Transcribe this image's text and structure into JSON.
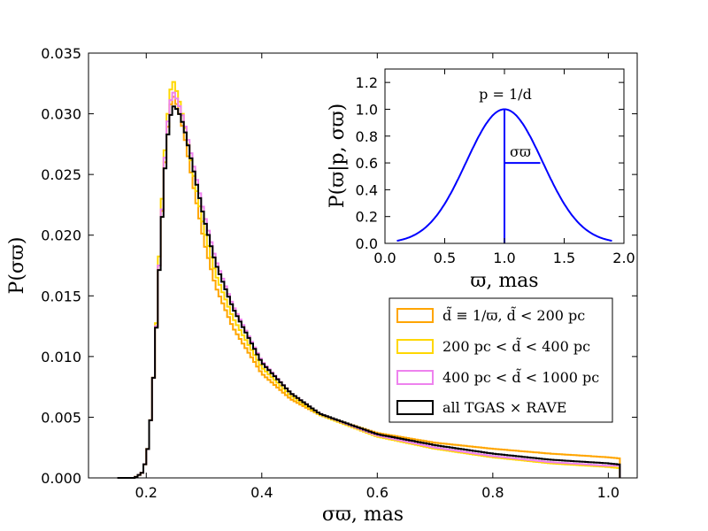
{
  "chart_data": [
    {
      "type": "histogram",
      "title": "",
      "xlabel": "σϖ, mas",
      "ylabel": "P(σϖ)",
      "xlim": [
        0.1,
        1.05
      ],
      "ylim": [
        0.0,
        0.035
      ],
      "xticks": [
        0.2,
        0.4,
        0.6,
        0.8,
        1.0
      ],
      "xtick_labels": [
        "0.2",
        "0.4",
        "0.6",
        "0.8",
        "1.0"
      ],
      "yticks": [
        0.0,
        0.005,
        0.01,
        0.015,
        0.02,
        0.025,
        0.03,
        0.035
      ],
      "ytick_labels": [
        "0.000",
        "0.005",
        "0.010",
        "0.015",
        "0.020",
        "0.025",
        "0.030",
        "0.035"
      ],
      "grid": false,
      "legend_position": "lower-right",
      "x_range": [
        0.15,
        1.02
      ],
      "series": [
        {
          "name": "d̃ ≡ 1/ϖ, d̃ < 200 pc",
          "color": "#ffa500",
          "points": [
            [
              0.15,
              0.0
            ],
            [
              0.18,
              0.0
            ],
            [
              0.195,
              0.0005
            ],
            [
              0.205,
              0.003
            ],
            [
              0.215,
              0.01
            ],
            [
              0.225,
              0.02
            ],
            [
              0.235,
              0.028
            ],
            [
              0.245,
              0.0317
            ],
            [
              0.255,
              0.0305
            ],
            [
              0.265,
              0.0285
            ],
            [
              0.28,
              0.0245
            ],
            [
              0.3,
              0.0195
            ],
            [
              0.32,
              0.0158
            ],
            [
              0.35,
              0.0124
            ],
            [
              0.4,
              0.0086
            ],
            [
              0.45,
              0.0065
            ],
            [
              0.5,
              0.0052
            ],
            [
              0.6,
              0.0037
            ],
            [
              0.7,
              0.0029
            ],
            [
              0.8,
              0.0024
            ],
            [
              0.9,
              0.002
            ],
            [
              1.0,
              0.0017
            ],
            [
              1.02,
              0.0016
            ]
          ]
        },
        {
          "name": "200 pc < d̃ < 400 pc",
          "color": "#ffd700",
          "points": [
            [
              0.15,
              0.0
            ],
            [
              0.18,
              0.0
            ],
            [
              0.195,
              0.0005
            ],
            [
              0.205,
              0.003
            ],
            [
              0.215,
              0.01
            ],
            [
              0.225,
              0.021
            ],
            [
              0.235,
              0.029
            ],
            [
              0.245,
              0.033
            ],
            [
              0.255,
              0.0315
            ],
            [
              0.265,
              0.0295
            ],
            [
              0.28,
              0.0255
            ],
            [
              0.3,
              0.0205
            ],
            [
              0.32,
              0.0168
            ],
            [
              0.35,
              0.0132
            ],
            [
              0.4,
              0.0091
            ],
            [
              0.45,
              0.0068
            ],
            [
              0.5,
              0.0052
            ],
            [
              0.6,
              0.0034
            ],
            [
              0.7,
              0.0024
            ],
            [
              0.8,
              0.0017
            ],
            [
              0.9,
              0.0012
            ],
            [
              1.0,
              0.0009
            ],
            [
              1.02,
              0.0008
            ]
          ]
        },
        {
          "name": "400 pc < d̃ < 1000 pc",
          "color": "#ee82ee",
          "points": [
            [
              0.15,
              0.0
            ],
            [
              0.18,
              0.0
            ],
            [
              0.195,
              0.0005
            ],
            [
              0.205,
              0.003
            ],
            [
              0.215,
              0.01
            ],
            [
              0.225,
              0.02
            ],
            [
              0.235,
              0.0285
            ],
            [
              0.245,
              0.032
            ],
            [
              0.255,
              0.031
            ],
            [
              0.265,
              0.0295
            ],
            [
              0.28,
              0.0262
            ],
            [
              0.3,
              0.0218
            ],
            [
              0.32,
              0.018
            ],
            [
              0.35,
              0.0142
            ],
            [
              0.4,
              0.0096
            ],
            [
              0.45,
              0.007
            ],
            [
              0.5,
              0.0053
            ],
            [
              0.6,
              0.0035
            ],
            [
              0.7,
              0.0025
            ],
            [
              0.8,
              0.0018
            ],
            [
              0.9,
              0.0013
            ],
            [
              1.0,
              0.001
            ],
            [
              1.02,
              0.001
            ]
          ]
        },
        {
          "name": "all TGAS × RAVE",
          "color": "#000000",
          "points": [
            [
              0.15,
              0.0
            ],
            [
              0.18,
              0.0
            ],
            [
              0.195,
              0.0005
            ],
            [
              0.205,
              0.003
            ],
            [
              0.215,
              0.01
            ],
            [
              0.225,
              0.0195
            ],
            [
              0.235,
              0.0275
            ],
            [
              0.245,
              0.0307
            ],
            [
              0.255,
              0.0303
            ],
            [
              0.265,
              0.029
            ],
            [
              0.28,
              0.0258
            ],
            [
              0.3,
              0.0214
            ],
            [
              0.32,
              0.0177
            ],
            [
              0.35,
              0.014
            ],
            [
              0.4,
              0.0095
            ],
            [
              0.45,
              0.007
            ],
            [
              0.5,
              0.0053
            ],
            [
              0.6,
              0.0036
            ],
            [
              0.7,
              0.0027
            ],
            [
              0.8,
              0.002
            ],
            [
              0.9,
              0.0015
            ],
            [
              1.0,
              0.0012
            ],
            [
              1.02,
              0.0011
            ]
          ]
        }
      ]
    },
    {
      "type": "line",
      "title": "",
      "xlabel": "ϖ, mas",
      "ylabel": "P(ϖ|p, σϖ)",
      "xlim": [
        0.0,
        2.0
      ],
      "ylim": [
        0.0,
        1.3
      ],
      "xticks": [
        0.0,
        0.5,
        1.0,
        1.5,
        2.0
      ],
      "xtick_labels": [
        "0.0",
        "0.5",
        "1.0",
        "1.5",
        "2.0"
      ],
      "yticks": [
        0.0,
        0.2,
        0.4,
        0.6,
        0.8,
        1.0,
        1.2
      ],
      "ytick_labels": [
        "0.0",
        "0.2",
        "0.4",
        "0.6",
        "0.8",
        "1.0",
        "1.2"
      ],
      "grid": false,
      "series": [
        {
          "name": "gaussian",
          "color": "#0000ff",
          "function": "gaussian",
          "mu": 1.0,
          "sigma": 0.32,
          "x_range": [
            0.1,
            1.9
          ]
        }
      ],
      "annotations": {
        "peak_label": "p = 1/d",
        "sigma_label": "σϖ",
        "vline_x": 1.0,
        "sigma_bar": {
          "x_start": 1.0,
          "x_end": 1.3,
          "y": 0.6
        }
      }
    }
  ]
}
